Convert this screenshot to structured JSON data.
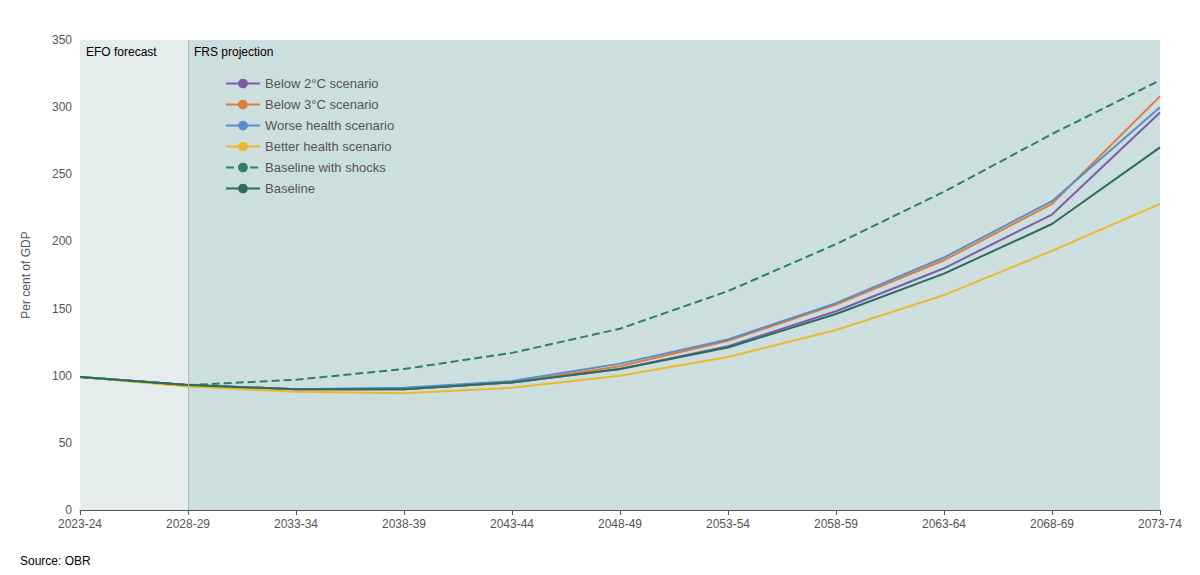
{
  "chart_data": {
    "type": "line",
    "ylabel": "Per cent of GDP",
    "source": "Source: OBR",
    "categories": [
      "2023-24",
      "2028-29",
      "2033-34",
      "2038-39",
      "2043-44",
      "2048-49",
      "2053-54",
      "2058-59",
      "2063-64",
      "2068-69",
      "2073-74"
    ],
    "annotations": [
      {
        "text": "EFO forecast",
        "from": "2023-24",
        "to": "2028-29",
        "color": "#e4ecec"
      },
      {
        "text": "FRS projection",
        "from": "2028-29",
        "to": "2073-74",
        "color": "#cddede"
      }
    ],
    "ylim": [
      0,
      350
    ],
    "yticks": [
      0,
      50,
      100,
      150,
      200,
      250,
      300,
      350
    ],
    "grid": true,
    "legend": "upper left",
    "marker": "none",
    "series": [
      {
        "name": "Below 2°C scenario",
        "color": "#7b5ea7",
        "line_style": "solid",
        "values": [
          99,
          93,
          90,
          90,
          95,
          105,
          122,
          148,
          180,
          220,
          296
        ]
      },
      {
        "name": "Below 3°C scenario",
        "color": "#e07b39",
        "line_style": "solid",
        "values": [
          99,
          93,
          90,
          90,
          95,
          107,
          126,
          153,
          186,
          228,
          308
        ]
      },
      {
        "name": "Worse health scenario",
        "color": "#5b8dc9",
        "line_style": "solid",
        "values": [
          99,
          93,
          90,
          91,
          96,
          109,
          127,
          154,
          188,
          230,
          300
        ]
      },
      {
        "name": "Better health scenario",
        "color": "#e8b92a",
        "line_style": "solid",
        "values": [
          99,
          92,
          88,
          87,
          91,
          100,
          114,
          134,
          160,
          193,
          228
        ]
      },
      {
        "name": "Baseline with shocks",
        "color": "#2d7d6b",
        "line_style": "dashed",
        "values": [
          99,
          93,
          97,
          105,
          117,
          135,
          163,
          198,
          237,
          280,
          320
        ]
      },
      {
        "name": "Baseline",
        "color": "#2d6b5e",
        "line_style": "solid",
        "values": [
          99,
          93,
          90,
          90,
          95,
          105,
          121,
          146,
          176,
          213,
          270
        ]
      }
    ]
  }
}
